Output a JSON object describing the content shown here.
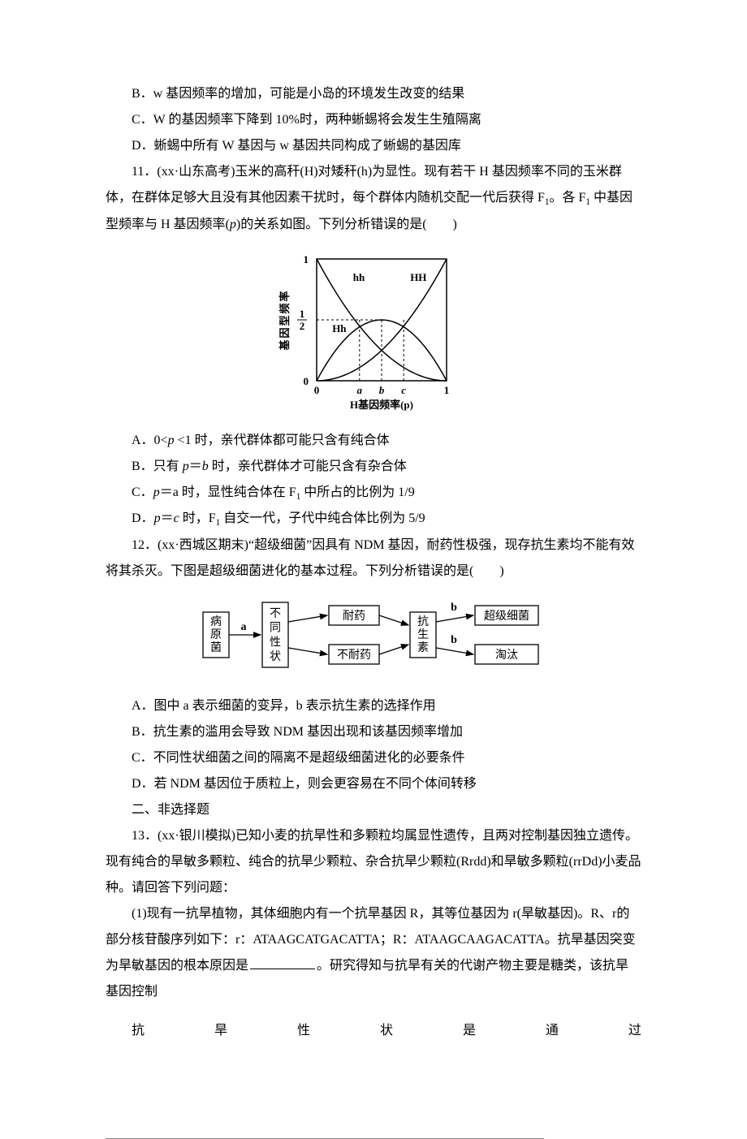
{
  "q10": {
    "b": "B．w 基因频率的增加，可能是小岛的环境发生改变的结果",
    "c": "C．W 的基因频率下降到 10%时，两种蜥蜴将会发生生殖隔离",
    "d": "D．蜥蜴中所有 W 基因与 w 基因共同构成了蜥蜴的基因库"
  },
  "q11": {
    "stem1": "11．(xx·山东高考)玉米的高秆(H)对矮秆(h)为显性。现有若干 H 基因频率不同的玉米群体，在群体足够大且没有其他因素干扰时，每个群体内随机交配一代后获得 F",
    "stem2": "。各 F",
    "stem3": " 中基因型频率与 H 基因频率(",
    "stem4": ")的关系如图。下列分析错误的是(　　)",
    "a1": "A．0<",
    "a2": " <1 时，亲代群体都可能只含有纯合体",
    "b1": "B．只有 ",
    "b2": "＝",
    "b3": " 时，亲代群体才可能只含有杂合体",
    "c1": "C．",
    "c2": "＝a 时，显性纯合体在 F",
    "c3": " 中所占的比例为 1/9",
    "d1": "D．",
    "d2": "＝",
    "d3": " 时，F",
    "d4": " 自交一代，子代中纯合体比例为 5/9",
    "chart": {
      "type": "line",
      "xlim": [
        0,
        1
      ],
      "ylim": [
        0,
        1
      ],
      "xticks": [
        "0",
        "a",
        "b",
        "c",
        "1"
      ],
      "xtick_pos": [
        0,
        0.33,
        0.5,
        0.67,
        1
      ],
      "ytick_labels": [
        "0",
        "1/2",
        "1"
      ],
      "ytick_pos": [
        0,
        0.5,
        1
      ],
      "xlabel": "H基因频率(p)",
      "ylabel": "基因型频率",
      "curves": {
        "hh": {
          "label": "hh",
          "label_pos": [
            0.28,
            0.82
          ]
        },
        "HH": {
          "label": "HH",
          "label_pos": [
            0.72,
            0.82
          ]
        },
        "Hh": {
          "label": "Hh",
          "label_pos": [
            0.12,
            0.4
          ]
        }
      },
      "axis_color": "#000000",
      "grid_dash": "3,3",
      "font_size": 13
    }
  },
  "q12": {
    "stem": "12．(xx·西城区期末)“超级细菌”因具有 NDM 基因，耐药性极强，现存抗生素均不能有效将其杀灭。下图是超级细菌进化的基本过程。下列分析错误的是(　　)",
    "a": "A．图中 a 表示细菌的变异，b 表示抗生素的选择作用",
    "b": "B．抗生素的滥用会导致 NDM 基因出现和该基因频率增加",
    "c": "C．不同性状细菌之间的隔离不是超级细菌进化的必要条件",
    "d": "D．若 NDM 基因位于质粒上，则会更容易在不同个体间转移",
    "flow": {
      "boxes": {
        "n1": "病原菌",
        "n2": "不同性状",
        "n3": "耐药",
        "n4": "不耐药",
        "n5": "抗生素",
        "n6": "超级细菌",
        "n7": "淘汰"
      },
      "edge_labels": {
        "a": "a",
        "b": "b"
      },
      "box_border": "#000000",
      "font_size": 14
    }
  },
  "section2": "二、非选择题",
  "q13": {
    "stem": "13．(xx·银川模拟)已知小麦的抗旱性和多颗粒均属显性遗传，且两对控制基因独立遗传。现有纯合的旱敏多颗粒、纯合的抗旱少颗粒、杂合抗旱少颗粒(Rrdd)和旱敏多颗粒(rrDd)小麦品种。请回答下列问题：",
    "p1a": "(1)现有一抗旱植物，其体细胞内有一个抗旱基因 R，其等位基因为 r(旱敏基因)。R、r的部分核苷酸序列如下：r：ATAAGCATGACATTA；R：ATAAGCAAGACATTA。抗旱基因突变为旱敏基因的根本原因是",
    "p1b": "。研究得知与抗旱有关的代谢产物主要是糖类，该抗旱基因控制",
    "spaced": [
      "抗",
      "旱",
      "性",
      "状",
      "是",
      "通",
      "过"
    ]
  },
  "p": "p",
  "b": "b",
  "c": "c",
  "one": "1"
}
